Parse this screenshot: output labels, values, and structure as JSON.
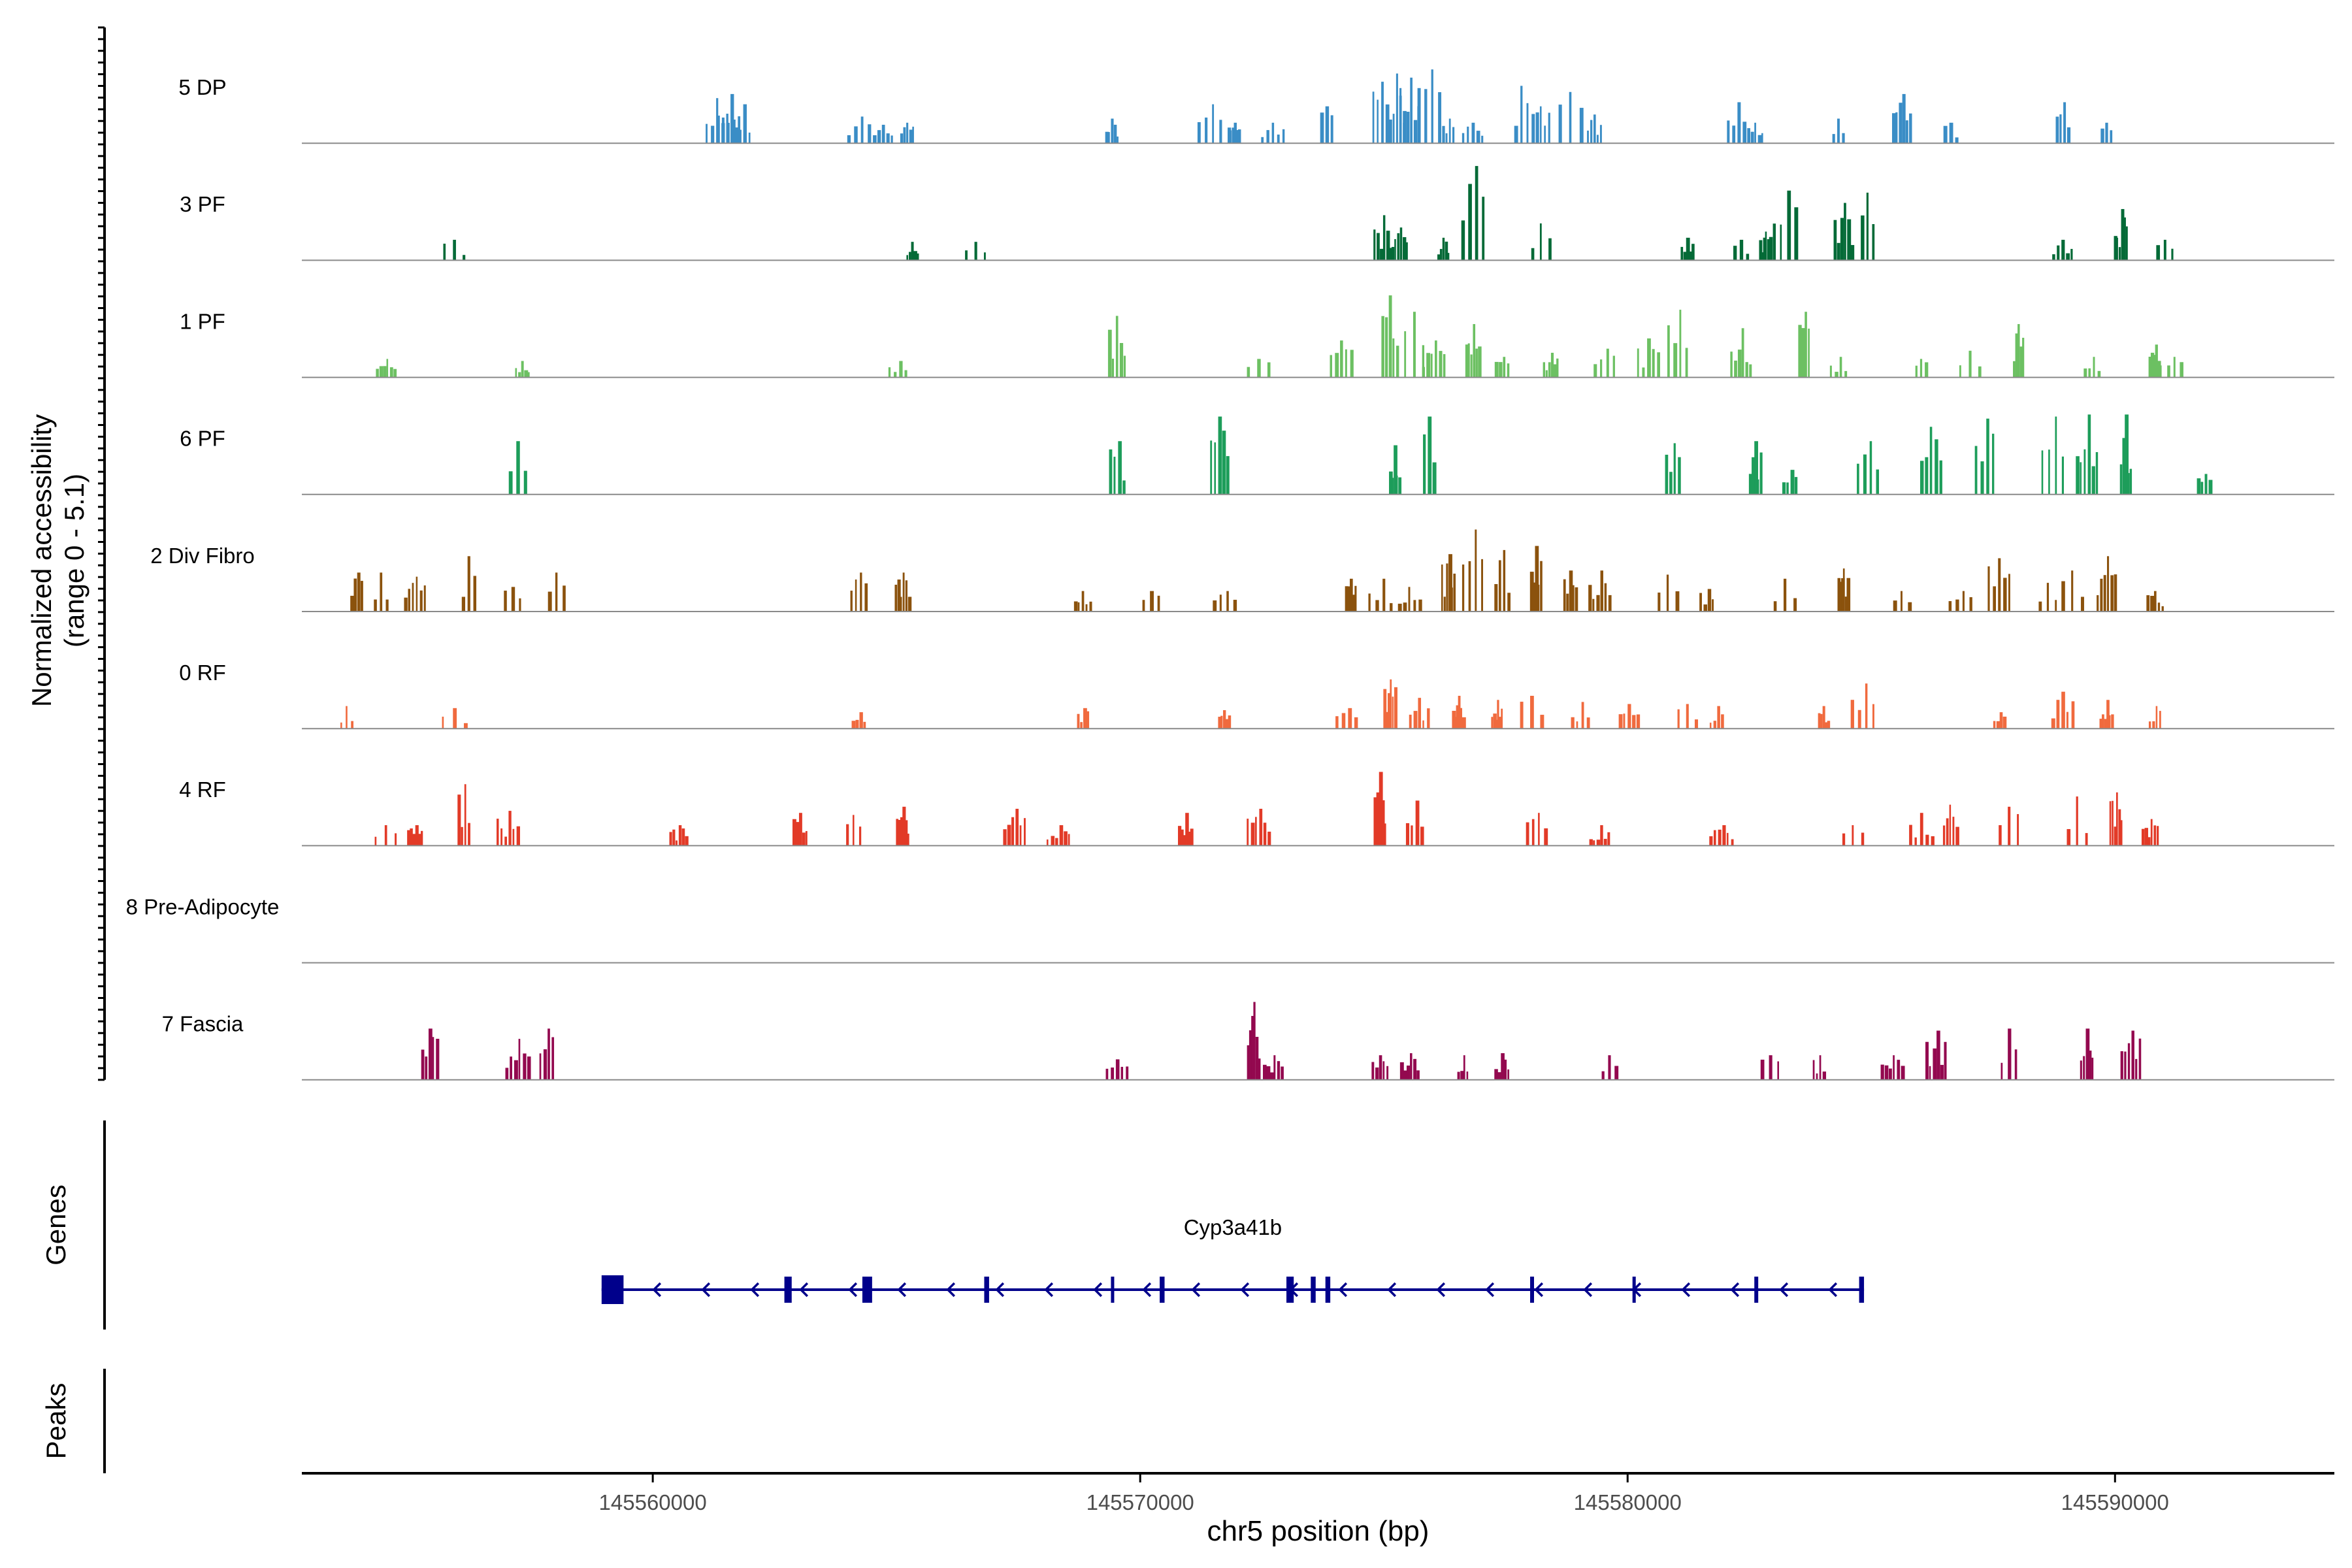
{
  "chart_data": {
    "type": "area",
    "title": "",
    "ylabel_lines": [
      "Normalized accessibility",
      "(range 0 - 5.1)"
    ],
    "ylim": [
      0,
      5.1
    ],
    "xlabel": "chr5 position (bp)",
    "xlim": [
      145552800,
      145594500
    ],
    "x_ticks": [
      145560000,
      145570000,
      145580000,
      145590000
    ],
    "x_tick_labels": [
      "145560000",
      "145570000",
      "145580000",
      "145590000"
    ],
    "tracks": [
      {
        "name": "5 DP",
        "color": "#3a8dc6",
        "peaks": [
          [
            145561300,
            2.2
          ],
          [
            145561550,
            2.4
          ],
          [
            145561800,
            1.9
          ],
          [
            145564200,
            1.3
          ],
          [
            145564700,
            0.9
          ],
          [
            145565200,
            1.0
          ],
          [
            145569400,
            1.2
          ],
          [
            145571400,
            1.9
          ],
          [
            145571900,
            1.0
          ],
          [
            145572700,
            1.0
          ],
          [
            145573800,
            1.8
          ],
          [
            145574900,
            3.0
          ],
          [
            145575250,
            3.4
          ],
          [
            145575500,
            3.2
          ],
          [
            145575900,
            3.6
          ],
          [
            145576300,
            1.2
          ],
          [
            145576800,
            1.0
          ],
          [
            145577800,
            2.8
          ],
          [
            145578200,
            1.8
          ],
          [
            145578800,
            2.5
          ],
          [
            145579300,
            1.4
          ],
          [
            145582200,
            2.0
          ],
          [
            145582600,
            1.0
          ],
          [
            145584300,
            1.2
          ],
          [
            145585600,
            2.4
          ],
          [
            145586600,
            1.0
          ],
          [
            145588900,
            2.0
          ],
          [
            145589800,
            1.0
          ]
        ]
      },
      {
        "name": "3 PF",
        "color": "#046a37",
        "peaks": [
          [
            145555900,
            1.0
          ],
          [
            145565300,
            0.9
          ],
          [
            145566600,
            0.9
          ],
          [
            145574950,
            2.2
          ],
          [
            145575300,
            1.6
          ],
          [
            145576200,
            1.1
          ],
          [
            145576800,
            4.6
          ],
          [
            145578200,
            1.8
          ],
          [
            145581200,
            1.1
          ],
          [
            145582300,
            1.0
          ],
          [
            145582800,
            1.4
          ],
          [
            145583200,
            3.4
          ],
          [
            145584400,
            2.8
          ],
          [
            145584900,
            3.3
          ],
          [
            145588900,
            1.0
          ],
          [
            145590100,
            2.5
          ],
          [
            145591000,
            1.0
          ]
        ]
      },
      {
        "name": "1 PF",
        "color": "#6cc062",
        "peaks": [
          [
            145554500,
            0.9
          ],
          [
            145557300,
            0.8
          ],
          [
            145565000,
            0.8
          ],
          [
            145569500,
            3.0
          ],
          [
            145572400,
            0.9
          ],
          [
            145574100,
            1.8
          ],
          [
            145575100,
            4.0
          ],
          [
            145575600,
            3.2
          ],
          [
            145576000,
            1.8
          ],
          [
            145576800,
            2.6
          ],
          [
            145577400,
            1.0
          ],
          [
            145578400,
            1.2
          ],
          [
            145579500,
            1.4
          ],
          [
            145580400,
            1.9
          ],
          [
            145581000,
            3.3
          ],
          [
            145582300,
            2.4
          ],
          [
            145583600,
            3.2
          ],
          [
            145584300,
            1.0
          ],
          [
            145586000,
            0.9
          ],
          [
            145587000,
            1.3
          ],
          [
            145588000,
            2.6
          ],
          [
            145589500,
            1.0
          ],
          [
            145590800,
            1.6
          ],
          [
            145591200,
            1.0
          ]
        ]
      },
      {
        "name": "6 PF",
        "color": "#1d9d5a",
        "peaks": [
          [
            145557200,
            2.6
          ],
          [
            145569500,
            2.6
          ],
          [
            145571600,
            3.8
          ],
          [
            145575200,
            2.4
          ],
          [
            145575900,
            3.8
          ],
          [
            145580900,
            2.5
          ],
          [
            145582600,
            2.6
          ],
          [
            145583300,
            1.2
          ],
          [
            145584900,
            2.6
          ],
          [
            145586200,
            3.3
          ],
          [
            145587300,
            3.7
          ],
          [
            145588700,
            3.8
          ],
          [
            145589400,
            3.9
          ],
          [
            145590200,
            3.9
          ],
          [
            145591800,
            1.0
          ]
        ]
      },
      {
        "name": "2 Div Fibro",
        "color": "#8b520d",
        "peaks": [
          [
            145553900,
            1.9
          ],
          [
            145554400,
            1.9
          ],
          [
            145555100,
            1.7
          ],
          [
            145556200,
            2.7
          ],
          [
            145557100,
            1.2
          ],
          [
            145558000,
            1.9
          ],
          [
            145564200,
            1.9
          ],
          [
            145565100,
            1.9
          ],
          [
            145568800,
            1.0
          ],
          [
            145570200,
            1.0
          ],
          [
            145571700,
            1.0
          ],
          [
            145574300,
            1.6
          ],
          [
            145574900,
            1.6
          ],
          [
            145575500,
            1.2
          ],
          [
            145576300,
            2.8
          ],
          [
            145576800,
            4.0
          ],
          [
            145577400,
            3.0
          ],
          [
            145578100,
            3.2
          ],
          [
            145578800,
            2.0
          ],
          [
            145579400,
            2.0
          ],
          [
            145580800,
            1.8
          ],
          [
            145581600,
            1.1
          ],
          [
            145583200,
            1.6
          ],
          [
            145584400,
            2.1
          ],
          [
            145585600,
            1.0
          ],
          [
            145586800,
            1.0
          ],
          [
            145587600,
            2.6
          ],
          [
            145588600,
            1.4
          ],
          [
            145589100,
            2.0
          ],
          [
            145589800,
            2.7
          ],
          [
            145590800,
            1.0
          ]
        ]
      },
      {
        "name": "0 RF",
        "color": "#f06a3e",
        "peaks": [
          [
            145553700,
            1.1
          ],
          [
            145555900,
            1.0
          ],
          [
            145564200,
            0.8
          ],
          [
            145568800,
            1.0
          ],
          [
            145571700,
            0.9
          ],
          [
            145574200,
            1.0
          ],
          [
            145575100,
            2.4
          ],
          [
            145575700,
            1.5
          ],
          [
            145576500,
            1.6
          ],
          [
            145577300,
            1.4
          ],
          [
            145578000,
            1.6
          ],
          [
            145579000,
            1.3
          ],
          [
            145580000,
            1.2
          ],
          [
            145581200,
            1.2
          ],
          [
            145581800,
            1.1
          ],
          [
            145584000,
            1.1
          ],
          [
            145584800,
            2.2
          ],
          [
            145587600,
            0.8
          ],
          [
            145588900,
            1.8
          ],
          [
            145589800,
            1.4
          ],
          [
            145590800,
            1.1
          ]
        ]
      },
      {
        "name": "4 RF",
        "color": "#e23a27",
        "peaks": [
          [
            145554500,
            1.0
          ],
          [
            145555100,
            1.0
          ],
          [
            145556100,
            3.0
          ],
          [
            145557000,
            1.7
          ],
          [
            145560500,
            1.0
          ],
          [
            145563000,
            1.6
          ],
          [
            145564100,
            1.5
          ],
          [
            145565100,
            1.9
          ],
          [
            145567400,
            1.8
          ],
          [
            145568300,
            1.0
          ],
          [
            145570900,
            1.6
          ],
          [
            145572400,
            1.8
          ],
          [
            145574900,
            3.6
          ],
          [
            145575600,
            2.2
          ],
          [
            145578100,
            1.6
          ],
          [
            145579400,
            1.0
          ],
          [
            145581900,
            1.0
          ],
          [
            145584600,
            1.0
          ],
          [
            145586000,
            1.6
          ],
          [
            145586600,
            2.0
          ],
          [
            145587800,
            1.9
          ],
          [
            145589200,
            2.4
          ],
          [
            145590000,
            2.6
          ],
          [
            145590700,
            1.3
          ]
        ]
      },
      {
        "name": "8 Pre-Adipocyte",
        "color": "#e8541d",
        "peaks": []
      },
      {
        "name": "7 Fascia",
        "color": "#93094f",
        "peaks": [
          [
            145555400,
            2.5
          ],
          [
            145557200,
            2.0
          ],
          [
            145557800,
            2.5
          ],
          [
            145569500,
            1.0
          ],
          [
            145572300,
            3.8
          ],
          [
            145572700,
            1.2
          ],
          [
            145574900,
            1.2
          ],
          [
            145575500,
            1.3
          ],
          [
            145576600,
            1.2
          ],
          [
            145577400,
            1.3
          ],
          [
            145579600,
            1.2
          ],
          [
            145582900,
            1.2
          ],
          [
            145583900,
            1.2
          ],
          [
            145585400,
            1.2
          ],
          [
            145586300,
            2.4
          ],
          [
            145587800,
            2.5
          ],
          [
            145589400,
            2.5
          ],
          [
            145590300,
            2.4
          ]
        ]
      }
    ],
    "genes": {
      "label": "Genes",
      "strand": "-",
      "color": "#00008b",
      "gene": {
        "name": "Cyp3a41b",
        "start": 145558950,
        "end": 145584850
      },
      "exons": [
        [
          145558950,
          145559400
        ],
        [
          145562700,
          145562850
        ],
        [
          145564300,
          145564500
        ],
        [
          145566800,
          145566900
        ],
        [
          145569400,
          145569450
        ],
        [
          145570400,
          145570500
        ],
        [
          145573000,
          145573150
        ],
        [
          145573500,
          145573600
        ],
        [
          145573800,
          145573900
        ],
        [
          145578000,
          145578080
        ],
        [
          145580100,
          145580150
        ],
        [
          145582600,
          145582680
        ],
        [
          145584750,
          145584850
        ]
      ]
    },
    "peaks_track": {
      "label": "Peaks",
      "regions": []
    }
  }
}
